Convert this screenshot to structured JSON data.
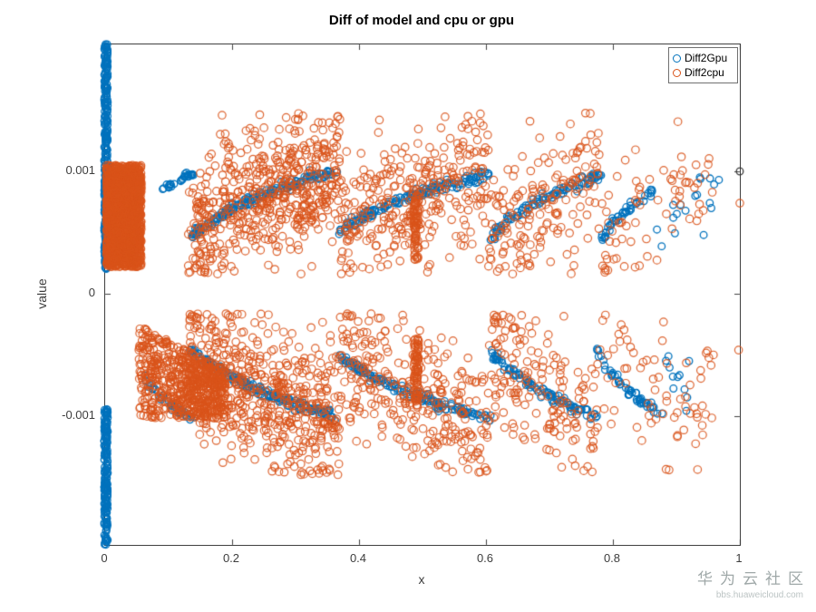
{
  "chart_data": {
    "type": "scatter",
    "title": "Diff of model and cpu or gpu",
    "xlabel": "x",
    "ylabel": "value",
    "xlim": [
      0,
      1
    ],
    "ylim": [
      -0.002052,
      0.002037
    ],
    "grid": false,
    "box": true,
    "xticks": {
      "values": [
        0,
        0.2,
        0.4,
        0.6,
        0.8,
        1
      ],
      "labels": [
        "0",
        "0.2",
        "0.4",
        "0.6",
        "0.8",
        "1"
      ]
    },
    "yticks": {
      "values": [
        -0.001,
        0,
        0.001
      ],
      "labels": [
        "-0.001",
        "0",
        "0.001"
      ]
    },
    "legend": {
      "position": "northeast",
      "entries": [
        {
          "label": "Diff2Gpu",
          "color": "#0072BD"
        },
        {
          "label": "Diff2cpu",
          "color": "#D95319"
        }
      ]
    },
    "series": [
      {
        "name": "Diff2Gpu",
        "marker": "open-circle",
        "color": "#0072BD",
        "radius": 3.8,
        "alpha": 1.0,
        "components": [
          {
            "type": "vstrip",
            "x": 0.0013,
            "jx": 0.0028,
            "y1": 0.0002,
            "y2": 0.00204,
            "n": 300
          },
          {
            "type": "vstrip",
            "x": 0.0013,
            "jx": 0.0028,
            "y1": -0.00092,
            "y2": -0.00205,
            "n": 200
          },
          {
            "type": "blob",
            "x1": 0.0,
            "x2": 0.014,
            "y1": 0.00082,
            "y2": 0.00104,
            "n": 80
          },
          {
            "type": "arc",
            "x1": 0.088,
            "x2": 0.139,
            "y1": 0.00084,
            "y2": 0.00098,
            "n": 30,
            "jy": 2e-05
          },
          {
            "type": "arc",
            "x1": 0.136,
            "x2": 0.368,
            "y1": 0.00047,
            "y2": 0.00101,
            "n": 170,
            "jy": 2e-05
          },
          {
            "type": "arc",
            "x1": 0.368,
            "x2": 0.607,
            "y1": 0.0005,
            "y2": 0.00098,
            "n": 150,
            "jy": 2e-05
          },
          {
            "type": "arc",
            "x1": 0.607,
            "x2": 0.782,
            "y1": 0.00046,
            "y2": 0.00097,
            "n": 95,
            "jy": 2e-05
          },
          {
            "type": "arc",
            "x1": 0.782,
            "x2": 0.862,
            "y1": 0.00044,
            "y2": 0.00083,
            "n": 45,
            "jy": 2e-05
          },
          {
            "type": "arc",
            "x1": 0.868,
            "x2": 0.965,
            "y1": 0.00045,
            "y2": 0.00097,
            "n": 14,
            "jy": 8e-05
          },
          {
            "type": "arc",
            "x1": 0.061,
            "x2": 0.14,
            "y1": -0.00068,
            "y2": -0.00102,
            "n": 42,
            "jy": 2e-05
          },
          {
            "type": "arc",
            "x1": 0.132,
            "x2": 0.368,
            "y1": -0.00044,
            "y2": -0.00101,
            "n": 170,
            "jy": 2e-05
          },
          {
            "type": "arc",
            "x1": 0.368,
            "x2": 0.608,
            "y1": -0.0005,
            "y2": -0.00102,
            "n": 150,
            "jy": 2e-05
          },
          {
            "type": "arc",
            "x1": 0.608,
            "x2": 0.775,
            "y1": -0.00047,
            "y2": -0.001,
            "n": 95,
            "jy": 2e-05
          },
          {
            "type": "arc",
            "x1": 0.775,
            "x2": 0.878,
            "y1": -0.00047,
            "y2": -0.00099,
            "n": 52,
            "jy": 2e-05
          },
          {
            "type": "arc",
            "x1": 0.88,
            "x2": 0.935,
            "y1": -0.0005,
            "y2": -0.00088,
            "n": 9,
            "jy": 6e-05
          },
          {
            "type": "points",
            "pts": [
              [
                0.937,
                0.00095
              ],
              [
                0.955,
                0.0007
              ],
              [
                0.943,
                0.00048
              ],
              [
                0.967,
                0.00093
              ],
              [
                0.92,
                -0.00055
              ],
              [
                0.902,
                -0.00068
              ]
            ]
          },
          {
            "type": "points",
            "color": "#3a3a3a",
            "pts": [
              [
                1.0,
                0.001
              ]
            ]
          }
        ]
      },
      {
        "name": "Diff2cpu",
        "marker": "open-circle",
        "color": "#D95319",
        "radius": 4.2,
        "alpha": 0.9,
        "components": [
          {
            "type": "blob",
            "x1": 0.002,
            "x2": 0.057,
            "y1": 0.00022,
            "y2": 0.00105,
            "n": 1600
          },
          {
            "type": "wedge",
            "x1": 0.053,
            "x2": 0.19,
            "yTop1": -0.00026,
            "yTop2": -0.00062,
            "yBot": -0.00102,
            "n": 600
          },
          {
            "type": "cloud",
            "x1": 0.13,
            "x2": 0.37,
            "y1": 0.0005,
            "y2": 0.001,
            "n": 540,
            "sp": 0.00027
          },
          {
            "type": "cloud",
            "x1": 0.37,
            "x2": 0.605,
            "y1": 0.0005,
            "y2": 0.00097,
            "n": 300,
            "sp": 0.00027
          },
          {
            "type": "cloud",
            "x1": 0.605,
            "x2": 0.78,
            "y1": 0.00047,
            "y2": 0.00096,
            "n": 175,
            "sp": 0.00028
          },
          {
            "type": "cloud",
            "x1": 0.78,
            "x2": 0.96,
            "y1": 0.00045,
            "y2": 0.0009,
            "n": 70,
            "sp": 0.0003
          },
          {
            "type": "cloud",
            "x1": 0.13,
            "x2": 0.37,
            "y1": -0.0005,
            "y2": -0.001,
            "n": 540,
            "sp": 0.0003
          },
          {
            "type": "cloud",
            "x1": 0.37,
            "x2": 0.605,
            "y1": -0.0005,
            "y2": -0.001,
            "n": 300,
            "sp": 0.00028
          },
          {
            "type": "cloud",
            "x1": 0.605,
            "x2": 0.78,
            "y1": -0.00047,
            "y2": -0.00098,
            "n": 175,
            "sp": 0.00028
          },
          {
            "type": "cloud",
            "x1": 0.78,
            "x2": 0.96,
            "y1": -0.00047,
            "y2": -0.00093,
            "n": 70,
            "sp": 0.0003
          },
          {
            "type": "vstrip",
            "x": 0.49,
            "jx": 0.004,
            "y1": 0.00028,
            "y2": 0.00085,
            "n": 75
          },
          {
            "type": "vstrip",
            "x": 0.49,
            "jx": 0.004,
            "y1": -0.00036,
            "y2": -0.00093,
            "n": 75
          },
          {
            "type": "points",
            "pts": [
              [
                1.0,
                0.00074
              ],
              [
                0.998,
                -0.00046
              ]
            ]
          }
        ]
      }
    ]
  },
  "watermark": {
    "line1": "华为云社区",
    "line2": "bbs.huaweicloud.com"
  }
}
